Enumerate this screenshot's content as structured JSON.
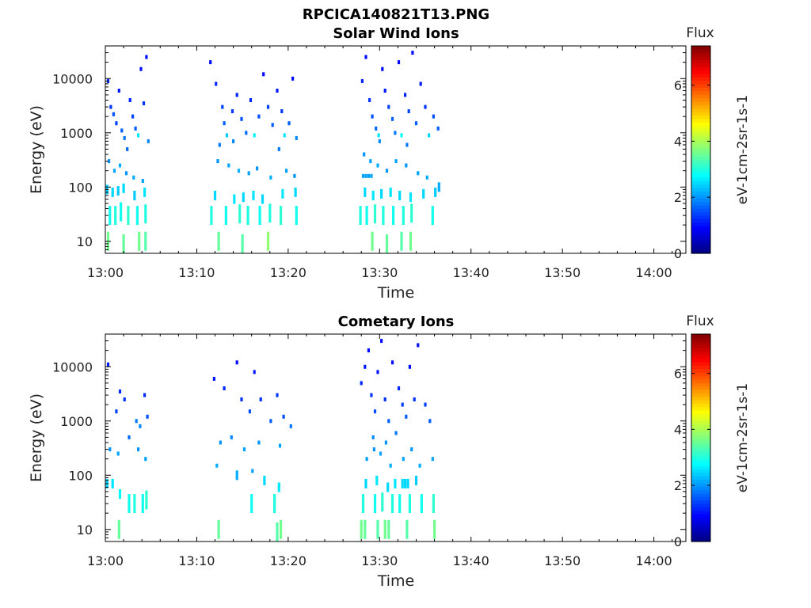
{
  "figure_title": "RPCICA140821T13.PNG",
  "colormap": [
    "#00007f",
    "#0000ff",
    "#007fff",
    "#00ffff",
    "#7fff7f",
    "#ffff00",
    "#ff7f00",
    "#ff0000",
    "#7f0000"
  ],
  "chart_data": [
    {
      "type": "heatmap",
      "title": "Solar Wind Ions",
      "xlabel": "Time",
      "ylabel": "Energy (eV)",
      "x_ticks": [
        "13:00",
        "13:10",
        "13:20",
        "13:30",
        "13:40",
        "13:50",
        "14:00"
      ],
      "xlim_minutes": [
        0,
        63.5
      ],
      "y_scale": "log",
      "y_ticks": [
        "10",
        "100",
        "1000",
        "10000"
      ],
      "ylim": [
        6,
        40000
      ],
      "colorbar": {
        "title": "Flux",
        "label": "eV-1cm-2sr-1s-1",
        "ticks": [
          "0",
          "2",
          "4",
          "6"
        ],
        "range": [
          0,
          7.4
        ]
      },
      "activity_intervals_minutes": [
        [
          0,
          4.8
        ],
        [
          11.3,
          21.2
        ],
        [
          27.9,
          37
        ]
      ],
      "points": [
        [
          0.3,
          9000,
          1.2
        ],
        [
          0.6,
          3000,
          1.3
        ],
        [
          0.9,
          2200,
          1.5
        ],
        [
          1.2,
          1500,
          1.4
        ],
        [
          1.5,
          6000,
          1.1
        ],
        [
          1.8,
          1100,
          1.6
        ],
        [
          2.1,
          800,
          1.8
        ],
        [
          2.4,
          500,
          1.7
        ],
        [
          2.7,
          4000,
          1.2
        ],
        [
          3.0,
          2000,
          1.4
        ],
        [
          3.3,
          1200,
          1.6
        ],
        [
          3.6,
          900,
          2.6
        ],
        [
          3.9,
          15000,
          1.0
        ],
        [
          4.2,
          3500,
          1.3
        ],
        [
          4.5,
          25000,
          1.0
        ],
        [
          4.7,
          700,
          1.9
        ],
        [
          0.4,
          300,
          2.0
        ],
        [
          1.0,
          200,
          2.1
        ],
        [
          1.6,
          250,
          2.2
        ],
        [
          2.3,
          180,
          2.0
        ],
        [
          3.1,
          150,
          2.2
        ],
        [
          4.1,
          130,
          2.1
        ],
        [
          0.2,
          90,
          2.4
        ],
        [
          0.8,
          80,
          2.5
        ],
        [
          1.4,
          85,
          2.4
        ],
        [
          2.0,
          95,
          2.5
        ],
        [
          3.2,
          70,
          2.4
        ],
        [
          4.3,
          80,
          2.6
        ],
        [
          0.5,
          30,
          2.9
        ],
        [
          1.1,
          30,
          3.0
        ],
        [
          1.7,
          35,
          2.9
        ],
        [
          2.5,
          30,
          3.1
        ],
        [
          3.5,
          30,
          2.9
        ],
        [
          4.4,
          32,
          3.0
        ],
        [
          0.3,
          10,
          3.6
        ],
        [
          2.0,
          9,
          3.5
        ],
        [
          3.7,
          10,
          3.6
        ],
        [
          4.4,
          10,
          3.4
        ],
        [
          11.5,
          20000,
          1.0
        ],
        [
          12.1,
          8000,
          1.2
        ],
        [
          12.8,
          3000,
          1.4
        ],
        [
          13.0,
          1500,
          1.6
        ],
        [
          13.3,
          900,
          2.4
        ],
        [
          13.9,
          2500,
          1.3
        ],
        [
          14.4,
          5000,
          1.2
        ],
        [
          14.9,
          1800,
          1.5
        ],
        [
          15.4,
          1000,
          1.7
        ],
        [
          15.9,
          4000,
          1.2
        ],
        [
          16.3,
          900,
          2.7
        ],
        [
          16.8,
          2000,
          1.5
        ],
        [
          17.3,
          12000,
          1.0
        ],
        [
          17.8,
          3000,
          1.4
        ],
        [
          18.3,
          1400,
          1.6
        ],
        [
          18.8,
          6000,
          1.1
        ],
        [
          19.3,
          2500,
          1.3
        ],
        [
          19.6,
          900,
          2.6
        ],
        [
          20.1,
          1500,
          1.6
        ],
        [
          20.5,
          10000,
          1.0
        ],
        [
          20.9,
          800,
          1.9
        ],
        [
          12.5,
          600,
          1.8
        ],
        [
          14.0,
          700,
          1.9
        ],
        [
          19.0,
          500,
          1.8
        ],
        [
          12.3,
          300,
          2.0
        ],
        [
          13.5,
          250,
          2.1
        ],
        [
          14.6,
          200,
          2.2
        ],
        [
          15.7,
          180,
          2.1
        ],
        [
          16.6,
          220,
          2.0
        ],
        [
          18.1,
          150,
          2.2
        ],
        [
          19.8,
          200,
          2.1
        ],
        [
          20.7,
          160,
          2.0
        ],
        [
          12.0,
          70,
          2.5
        ],
        [
          14.1,
          60,
          2.6
        ],
        [
          15.1,
          65,
          2.5
        ],
        [
          16.2,
          70,
          2.6
        ],
        [
          17.2,
          60,
          2.5
        ],
        [
          19.4,
          75,
          2.6
        ],
        [
          20.8,
          80,
          2.5
        ],
        [
          11.6,
          30,
          3.0
        ],
        [
          13.2,
          30,
          2.9
        ],
        [
          14.7,
          32,
          3.1
        ],
        [
          15.6,
          30,
          3.0
        ],
        [
          16.9,
          30,
          2.9
        ],
        [
          18.0,
          33,
          3.0
        ],
        [
          19.2,
          30,
          3.1
        ],
        [
          20.9,
          30,
          2.9
        ],
        [
          12.4,
          10,
          3.5
        ],
        [
          15.0,
          9,
          3.4
        ],
        [
          17.8,
          10,
          3.8
        ],
        [
          28.1,
          9000,
          1.2
        ],
        [
          28.5,
          25000,
          1.0
        ],
        [
          28.9,
          4000,
          1.3
        ],
        [
          29.2,
          2000,
          1.5
        ],
        [
          29.6,
          1200,
          1.7
        ],
        [
          29.9,
          900,
          2.6
        ],
        [
          30.3,
          15000,
          1.0
        ],
        [
          30.6,
          6000,
          1.1
        ],
        [
          31.0,
          3000,
          1.4
        ],
        [
          31.4,
          1800,
          1.6
        ],
        [
          31.7,
          1000,
          1.8
        ],
        [
          32.1,
          20000,
          1.0
        ],
        [
          32.4,
          900,
          2.8
        ],
        [
          32.8,
          5000,
          1.2
        ],
        [
          33.2,
          2500,
          1.4
        ],
        [
          33.6,
          30000,
          1.0
        ],
        [
          34.0,
          1500,
          1.6
        ],
        [
          34.5,
          8000,
          1.1
        ],
        [
          35.0,
          3000,
          1.3
        ],
        [
          35.4,
          900,
          2.5
        ],
        [
          35.9,
          2000,
          1.5
        ],
        [
          36.4,
          1200,
          1.6
        ],
        [
          30.0,
          700,
          1.9
        ],
        [
          33.0,
          600,
          1.8
        ],
        [
          28.3,
          400,
          2.0
        ],
        [
          29.0,
          300,
          2.1
        ],
        [
          29.8,
          250,
          2.2
        ],
        [
          30.8,
          200,
          2.0
        ],
        [
          31.8,
          300,
          2.1
        ],
        [
          32.9,
          250,
          2.0
        ],
        [
          34.2,
          180,
          2.1
        ],
        [
          35.2,
          150,
          2.2
        ],
        [
          28.2,
          160,
          2.1
        ],
        [
          28.5,
          160,
          2.1
        ],
        [
          28.8,
          160,
          2.1
        ],
        [
          29.1,
          160,
          2.1
        ],
        [
          36.5,
          100,
          2.2
        ],
        [
          28.4,
          80,
          2.5
        ],
        [
          29.3,
          70,
          2.6
        ],
        [
          30.2,
          75,
          2.5
        ],
        [
          31.2,
          80,
          2.6
        ],
        [
          32.2,
          70,
          2.5
        ],
        [
          33.4,
          65,
          2.6
        ],
        [
          34.8,
          75,
          2.5
        ],
        [
          36.1,
          80,
          2.4
        ],
        [
          27.9,
          30,
          3.0
        ],
        [
          28.6,
          30,
          2.9
        ],
        [
          29.5,
          32,
          3.1
        ],
        [
          30.4,
          30,
          3.0
        ],
        [
          31.5,
          30,
          2.9
        ],
        [
          32.6,
          30,
          3.0
        ],
        [
          33.5,
          33,
          3.1
        ],
        [
          35.8,
          30,
          2.9
        ],
        [
          29.2,
          10,
          3.6
        ],
        [
          30.8,
          9,
          3.5
        ],
        [
          32.4,
          10,
          3.4
        ],
        [
          33.4,
          10,
          3.6
        ]
      ]
    },
    {
      "type": "heatmap",
      "title": "Cometary Ions",
      "xlabel": "Time",
      "ylabel": "Energy (eV)",
      "x_ticks": [
        "13:00",
        "13:10",
        "13:20",
        "13:30",
        "13:40",
        "13:50",
        "14:00"
      ],
      "xlim_minutes": [
        0,
        63.5
      ],
      "y_scale": "log",
      "y_ticks": [
        "10",
        "100",
        "1000",
        "10000"
      ],
      "ylim": [
        6,
        40000
      ],
      "colorbar": {
        "title": "Flux",
        "label": "eV-1cm-2sr-1s-1",
        "ticks": [
          "0",
          "2",
          "4",
          "6"
        ],
        "range": [
          0,
          7.4
        ]
      },
      "activity_intervals_minutes": [
        [
          0,
          4.8
        ],
        [
          11.3,
          21.2
        ],
        [
          27.9,
          37
        ]
      ],
      "points": [
        [
          0.3,
          11000,
          1.1
        ],
        [
          1.2,
          1500,
          1.4
        ],
        [
          1.6,
          3500,
          1.2
        ],
        [
          2.1,
          2500,
          1.3
        ],
        [
          2.6,
          500,
          1.7
        ],
        [
          3.4,
          1000,
          1.8
        ],
        [
          3.8,
          800,
          1.9
        ],
        [
          4.3,
          3000,
          1.2
        ],
        [
          4.6,
          1200,
          1.5
        ],
        [
          0.5,
          300,
          2.0
        ],
        [
          1.4,
          250,
          2.1
        ],
        [
          3.6,
          300,
          2.0
        ],
        [
          4.4,
          200,
          2.1
        ],
        [
          0.2,
          70,
          2.5
        ],
        [
          0.8,
          70,
          2.6
        ],
        [
          1.6,
          45,
          2.8
        ],
        [
          2.6,
          30,
          2.9
        ],
        [
          3.2,
          30,
          3.0
        ],
        [
          4.1,
          30,
          2.9
        ],
        [
          4.5,
          35,
          3.1
        ],
        [
          1.5,
          10,
          3.5
        ],
        [
          11.9,
          6000,
          1.1
        ],
        [
          13.0,
          4000,
          1.2
        ],
        [
          14.4,
          12000,
          1.0
        ],
        [
          14.9,
          2500,
          1.3
        ],
        [
          15.8,
          1500,
          1.5
        ],
        [
          16.3,
          8000,
          1.1
        ],
        [
          17.0,
          2500,
          1.3
        ],
        [
          18.1,
          1000,
          1.6
        ],
        [
          18.8,
          3000,
          1.3
        ],
        [
          19.5,
          1200,
          1.5
        ],
        [
          20.3,
          800,
          1.8
        ],
        [
          12.6,
          400,
          2.0
        ],
        [
          13.8,
          500,
          1.9
        ],
        [
          15.2,
          300,
          2.1
        ],
        [
          16.8,
          400,
          2.0
        ],
        [
          19.1,
          350,
          2.1
        ],
        [
          12.2,
          150,
          2.2
        ],
        [
          14.4,
          100,
          2.2
        ],
        [
          16.1,
          120,
          2.1
        ],
        [
          17.4,
          80,
          2.5
        ],
        [
          19.0,
          60,
          2.6
        ],
        [
          16.0,
          30,
          2.9
        ],
        [
          18.5,
          30,
          3.0
        ],
        [
          12.4,
          10,
          3.5
        ],
        [
          18.8,
          9,
          3.4
        ],
        [
          19.2,
          10,
          3.6
        ],
        [
          28.0,
          5000,
          1.2
        ],
        [
          28.4,
          10000,
          1.1
        ],
        [
          28.8,
          20000,
          1.0
        ],
        [
          29.1,
          3000,
          1.3
        ],
        [
          29.5,
          1500,
          1.5
        ],
        [
          29.8,
          8000,
          1.1
        ],
        [
          30.2,
          30000,
          1.0
        ],
        [
          30.6,
          2500,
          1.3
        ],
        [
          31.0,
          1000,
          1.6
        ],
        [
          31.4,
          12000,
          1.0
        ],
        [
          31.8,
          600,
          1.8
        ],
        [
          32.1,
          4000,
          1.2
        ],
        [
          32.5,
          2000,
          1.4
        ],
        [
          32.9,
          1200,
          1.6
        ],
        [
          33.3,
          10000,
          1.0
        ],
        [
          33.8,
          2500,
          1.3
        ],
        [
          34.2,
          25000,
          1.0
        ],
        [
          35.0,
          2000,
          1.4
        ],
        [
          35.5,
          1000,
          1.6
        ],
        [
          29.3,
          500,
          1.9
        ],
        [
          30.7,
          400,
          2.0
        ],
        [
          28.6,
          200,
          2.1
        ],
        [
          29.4,
          300,
          2.0
        ],
        [
          30.1,
          250,
          2.1
        ],
        [
          31.2,
          150,
          2.2
        ],
        [
          32.6,
          200,
          2.1
        ],
        [
          33.5,
          300,
          2.0
        ],
        [
          34.4,
          150,
          2.2
        ],
        [
          35.8,
          200,
          2.1
        ],
        [
          28.5,
          70,
          2.5
        ],
        [
          29.7,
          80,
          2.6
        ],
        [
          30.9,
          60,
          2.5
        ],
        [
          31.7,
          70,
          2.6
        ],
        [
          32.5,
          70,
          2.5
        ],
        [
          32.8,
          70,
          2.5
        ],
        [
          33.1,
          70,
          2.5
        ],
        [
          34.0,
          80,
          2.4
        ],
        [
          28.2,
          30,
          3.0
        ],
        [
          29.5,
          30,
          2.9
        ],
        [
          30.3,
          32,
          3.1
        ],
        [
          31.4,
          30,
          3.0
        ],
        [
          32.2,
          30,
          2.9
        ],
        [
          33.3,
          30,
          3.0
        ],
        [
          34.6,
          30,
          2.9
        ],
        [
          35.9,
          30,
          3.1
        ],
        [
          28.0,
          10,
          3.6
        ],
        [
          28.4,
          10,
          3.5
        ],
        [
          29.8,
          10,
          3.4
        ],
        [
          30.6,
          10,
          3.6
        ],
        [
          31.0,
          10,
          3.5
        ],
        [
          33.0,
          10,
          3.4
        ],
        [
          36.0,
          10,
          3.6
        ]
      ]
    }
  ]
}
